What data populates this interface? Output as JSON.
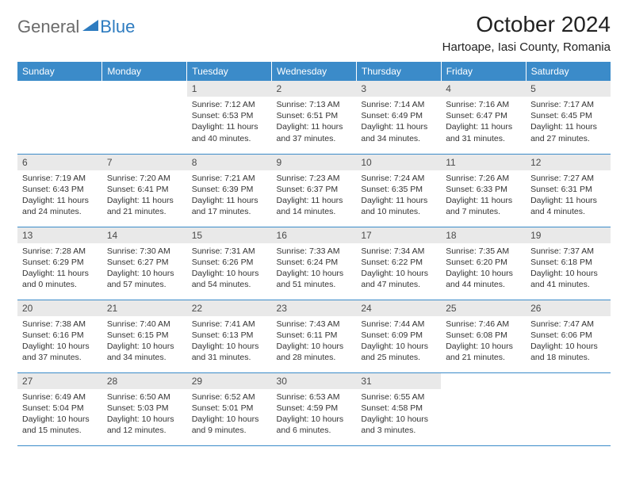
{
  "logo": {
    "general": "General",
    "blue": "Blue"
  },
  "title": "October 2024",
  "location": "Hartoape, Iasi County, Romania",
  "colors": {
    "header_bg": "#3b8bc9",
    "header_text": "#ffffff",
    "daynum_bg": "#e9e9e9",
    "daynum_text": "#4a4a4a",
    "border": "#3b8bc9",
    "logo_gray": "#6b6b6b",
    "logo_blue": "#2e7cc0"
  },
  "weekdays": [
    "Sunday",
    "Monday",
    "Tuesday",
    "Wednesday",
    "Thursday",
    "Friday",
    "Saturday"
  ],
  "days": {
    "1": {
      "sunrise": "Sunrise: 7:12 AM",
      "sunset": "Sunset: 6:53 PM",
      "daylight": "Daylight: 11 hours and 40 minutes."
    },
    "2": {
      "sunrise": "Sunrise: 7:13 AM",
      "sunset": "Sunset: 6:51 PM",
      "daylight": "Daylight: 11 hours and 37 minutes."
    },
    "3": {
      "sunrise": "Sunrise: 7:14 AM",
      "sunset": "Sunset: 6:49 PM",
      "daylight": "Daylight: 11 hours and 34 minutes."
    },
    "4": {
      "sunrise": "Sunrise: 7:16 AM",
      "sunset": "Sunset: 6:47 PM",
      "daylight": "Daylight: 11 hours and 31 minutes."
    },
    "5": {
      "sunrise": "Sunrise: 7:17 AM",
      "sunset": "Sunset: 6:45 PM",
      "daylight": "Daylight: 11 hours and 27 minutes."
    },
    "6": {
      "sunrise": "Sunrise: 7:19 AM",
      "sunset": "Sunset: 6:43 PM",
      "daylight": "Daylight: 11 hours and 24 minutes."
    },
    "7": {
      "sunrise": "Sunrise: 7:20 AM",
      "sunset": "Sunset: 6:41 PM",
      "daylight": "Daylight: 11 hours and 21 minutes."
    },
    "8": {
      "sunrise": "Sunrise: 7:21 AM",
      "sunset": "Sunset: 6:39 PM",
      "daylight": "Daylight: 11 hours and 17 minutes."
    },
    "9": {
      "sunrise": "Sunrise: 7:23 AM",
      "sunset": "Sunset: 6:37 PM",
      "daylight": "Daylight: 11 hours and 14 minutes."
    },
    "10": {
      "sunrise": "Sunrise: 7:24 AM",
      "sunset": "Sunset: 6:35 PM",
      "daylight": "Daylight: 11 hours and 10 minutes."
    },
    "11": {
      "sunrise": "Sunrise: 7:26 AM",
      "sunset": "Sunset: 6:33 PM",
      "daylight": "Daylight: 11 hours and 7 minutes."
    },
    "12": {
      "sunrise": "Sunrise: 7:27 AM",
      "sunset": "Sunset: 6:31 PM",
      "daylight": "Daylight: 11 hours and 4 minutes."
    },
    "13": {
      "sunrise": "Sunrise: 7:28 AM",
      "sunset": "Sunset: 6:29 PM",
      "daylight": "Daylight: 11 hours and 0 minutes."
    },
    "14": {
      "sunrise": "Sunrise: 7:30 AM",
      "sunset": "Sunset: 6:27 PM",
      "daylight": "Daylight: 10 hours and 57 minutes."
    },
    "15": {
      "sunrise": "Sunrise: 7:31 AM",
      "sunset": "Sunset: 6:26 PM",
      "daylight": "Daylight: 10 hours and 54 minutes."
    },
    "16": {
      "sunrise": "Sunrise: 7:33 AM",
      "sunset": "Sunset: 6:24 PM",
      "daylight": "Daylight: 10 hours and 51 minutes."
    },
    "17": {
      "sunrise": "Sunrise: 7:34 AM",
      "sunset": "Sunset: 6:22 PM",
      "daylight": "Daylight: 10 hours and 47 minutes."
    },
    "18": {
      "sunrise": "Sunrise: 7:35 AM",
      "sunset": "Sunset: 6:20 PM",
      "daylight": "Daylight: 10 hours and 44 minutes."
    },
    "19": {
      "sunrise": "Sunrise: 7:37 AM",
      "sunset": "Sunset: 6:18 PM",
      "daylight": "Daylight: 10 hours and 41 minutes."
    },
    "20": {
      "sunrise": "Sunrise: 7:38 AM",
      "sunset": "Sunset: 6:16 PM",
      "daylight": "Daylight: 10 hours and 37 minutes."
    },
    "21": {
      "sunrise": "Sunrise: 7:40 AM",
      "sunset": "Sunset: 6:15 PM",
      "daylight": "Daylight: 10 hours and 34 minutes."
    },
    "22": {
      "sunrise": "Sunrise: 7:41 AM",
      "sunset": "Sunset: 6:13 PM",
      "daylight": "Daylight: 10 hours and 31 minutes."
    },
    "23": {
      "sunrise": "Sunrise: 7:43 AM",
      "sunset": "Sunset: 6:11 PM",
      "daylight": "Daylight: 10 hours and 28 minutes."
    },
    "24": {
      "sunrise": "Sunrise: 7:44 AM",
      "sunset": "Sunset: 6:09 PM",
      "daylight": "Daylight: 10 hours and 25 minutes."
    },
    "25": {
      "sunrise": "Sunrise: 7:46 AM",
      "sunset": "Sunset: 6:08 PM",
      "daylight": "Daylight: 10 hours and 21 minutes."
    },
    "26": {
      "sunrise": "Sunrise: 7:47 AM",
      "sunset": "Sunset: 6:06 PM",
      "daylight": "Daylight: 10 hours and 18 minutes."
    },
    "27": {
      "sunrise": "Sunrise: 6:49 AM",
      "sunset": "Sunset: 5:04 PM",
      "daylight": "Daylight: 10 hours and 15 minutes."
    },
    "28": {
      "sunrise": "Sunrise: 6:50 AM",
      "sunset": "Sunset: 5:03 PM",
      "daylight": "Daylight: 10 hours and 12 minutes."
    },
    "29": {
      "sunrise": "Sunrise: 6:52 AM",
      "sunset": "Sunset: 5:01 PM",
      "daylight": "Daylight: 10 hours and 9 minutes."
    },
    "30": {
      "sunrise": "Sunrise: 6:53 AM",
      "sunset": "Sunset: 4:59 PM",
      "daylight": "Daylight: 10 hours and 6 minutes."
    },
    "31": {
      "sunrise": "Sunrise: 6:55 AM",
      "sunset": "Sunset: 4:58 PM",
      "daylight": "Daylight: 10 hours and 3 minutes."
    }
  },
  "grid": [
    [
      null,
      null,
      "1",
      "2",
      "3",
      "4",
      "5"
    ],
    [
      "6",
      "7",
      "8",
      "9",
      "10",
      "11",
      "12"
    ],
    [
      "13",
      "14",
      "15",
      "16",
      "17",
      "18",
      "19"
    ],
    [
      "20",
      "21",
      "22",
      "23",
      "24",
      "25",
      "26"
    ],
    [
      "27",
      "28",
      "29",
      "30",
      "31",
      null,
      null
    ]
  ]
}
